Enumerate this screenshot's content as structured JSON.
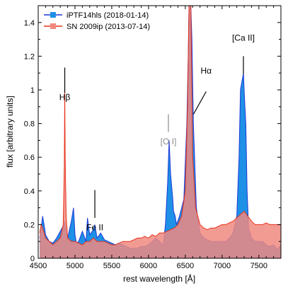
{
  "chart_data": {
    "type": "line",
    "xlabel": "rest wavelength [Å]",
    "ylabel": "flux [arbitrary units]",
    "xlim": [
      4500,
      7800
    ],
    "ylim": [
      0,
      1.5
    ],
    "xticks": [
      4500,
      5000,
      5500,
      6000,
      6500,
      7000,
      7500
    ],
    "yticks": [
      0,
      0.2,
      0.4,
      0.6,
      0.8,
      1,
      1.2,
      1.4
    ],
    "tick_labels_x": [
      "4500",
      "5000",
      "5500",
      "6000",
      "6500",
      "7000",
      "7500"
    ],
    "tick_labels_y": [
      "0",
      "0.2",
      "0.4",
      "0.6",
      "0.8",
      "1",
      "1.2",
      "1.4"
    ],
    "legend": {
      "placement": "top-left"
    },
    "series": [
      {
        "name": "iPTF14hls (2018-01-14)",
        "color": "#1f3bd6",
        "fill": "#1e90e6",
        "x": [
          4520,
          4540,
          4560,
          4580,
          4600,
          4650,
          4700,
          4750,
          4800,
          4850,
          4861,
          4870,
          4900,
          4950,
          4980,
          5000,
          5020,
          5050,
          5100,
          5150,
          5170,
          5200,
          5250,
          5270,
          5300,
          5350,
          5400,
          5450,
          5500,
          5550,
          5600,
          5650,
          5700,
          5750,
          5800,
          5850,
          5900,
          5950,
          6000,
          6050,
          6100,
          6150,
          6200,
          6230,
          6260,
          6280,
          6300,
          6330,
          6340,
          6363,
          6380,
          6420,
          6480,
          6520,
          6540,
          6550,
          6560,
          6575,
          6590,
          6610,
          6650,
          6700,
          6750,
          6800,
          6850,
          6900,
          6950,
          7000,
          7050,
          7100,
          7150,
          7200,
          7230,
          7250,
          7270,
          7291,
          7300,
          7310,
          7323,
          7340,
          7360,
          7400,
          7450,
          7500,
          7550,
          7600,
          7650,
          7700,
          7750,
          7800
        ],
        "y": [
          0.12,
          0.18,
          0.25,
          0.2,
          0.14,
          0.1,
          0.09,
          0.12,
          0.16,
          0.2,
          0.22,
          0.18,
          0.12,
          0.22,
          0.3,
          0.14,
          0.09,
          0.1,
          0.16,
          0.1,
          0.24,
          0.14,
          0.17,
          0.2,
          0.12,
          0.15,
          0.11,
          0.1,
          0.09,
          0.08,
          0.09,
          0.08,
          0.07,
          0.06,
          0.06,
          0.06,
          0.07,
          0.07,
          0.08,
          0.1,
          0.12,
          0.1,
          0.08,
          0.2,
          0.45,
          0.7,
          0.5,
          0.35,
          0.28,
          0.25,
          0.2,
          0.25,
          0.35,
          0.8,
          1.2,
          1.5,
          1.5,
          1.5,
          1.3,
          0.8,
          0.3,
          0.15,
          0.12,
          0.11,
          0.1,
          0.1,
          0.1,
          0.1,
          0.1,
          0.12,
          0.15,
          0.25,
          0.6,
          1.0,
          1.05,
          1.1,
          1.0,
          0.9,
          0.8,
          0.4,
          0.18,
          0.12,
          0.1,
          0.1,
          0.1,
          0.08,
          0.07,
          0.08,
          0.05,
          0.08
        ]
      },
      {
        "name": "SN 2009ip (2013-07-14)",
        "color": "#e8331c",
        "fill": "#f08a80",
        "x": [
          4520,
          4540,
          4560,
          4600,
          4650,
          4700,
          4750,
          4800,
          4840,
          4855,
          4861,
          4867,
          4880,
          4900,
          4950,
          5000,
          5050,
          5100,
          5150,
          5200,
          5250,
          5300,
          5350,
          5400,
          5450,
          5500,
          5550,
          5600,
          5650,
          5700,
          5750,
          5800,
          5850,
          5900,
          5950,
          6000,
          6050,
          6100,
          6150,
          6200,
          6250,
          6300,
          6350,
          6400,
          6450,
          6500,
          6530,
          6550,
          6563,
          6575,
          6600,
          6640,
          6700,
          6750,
          6800,
          6850,
          6900,
          6950,
          7000,
          7050,
          7100,
          7150,
          7200,
          7250,
          7300,
          7350,
          7400,
          7450,
          7500,
          7550,
          7600,
          7650,
          7700,
          7750,
          7800
        ],
        "y": [
          0.15,
          0.2,
          0.18,
          0.12,
          0.1,
          0.08,
          0.1,
          0.12,
          0.2,
          0.55,
          1.02,
          0.6,
          0.25,
          0.12,
          0.1,
          0.1,
          0.09,
          0.08,
          0.1,
          0.1,
          0.12,
          0.1,
          0.1,
          0.1,
          0.09,
          0.08,
          0.08,
          0.09,
          0.1,
          0.1,
          0.1,
          0.11,
          0.12,
          0.12,
          0.13,
          0.12,
          0.14,
          0.13,
          0.15,
          0.15,
          0.16,
          0.17,
          0.18,
          0.2,
          0.25,
          0.4,
          0.9,
          1.5,
          1.5,
          1.5,
          0.6,
          0.3,
          0.2,
          0.18,
          0.17,
          0.18,
          0.18,
          0.19,
          0.2,
          0.2,
          0.21,
          0.22,
          0.24,
          0.26,
          0.28,
          0.25,
          0.22,
          0.2,
          0.2,
          0.2,
          0.21,
          0.2,
          0.2,
          0.2,
          0.2
        ]
      }
    ],
    "annotations": [
      {
        "text": "Hβ",
        "x": 4861,
        "y_text": 0.385,
        "line": [
          0.345,
          0.245
        ],
        "color": "#000000"
      },
      {
        "text": "Fe II",
        "x": 5270,
        "y_text": 0.9,
        "line": [
          0.84,
          0.73
        ],
        "color": "#000000"
      },
      {
        "text": "[O I]",
        "x": 6270,
        "y_text": 0.56,
        "line": [
          0.5,
          0.43
        ],
        "color": "#8a8a8a"
      },
      {
        "text": "Hα",
        "x": 6610,
        "y_text": 0.28,
        "line": [
          0.34,
          0.43
        ],
        "color": "#000000"
      },
      {
        "text": "[Ca II]",
        "x": 7290,
        "y_text": 0.15,
        "line": [
          0.2,
          0.27
        ],
        "color": "#000000"
      }
    ]
  }
}
